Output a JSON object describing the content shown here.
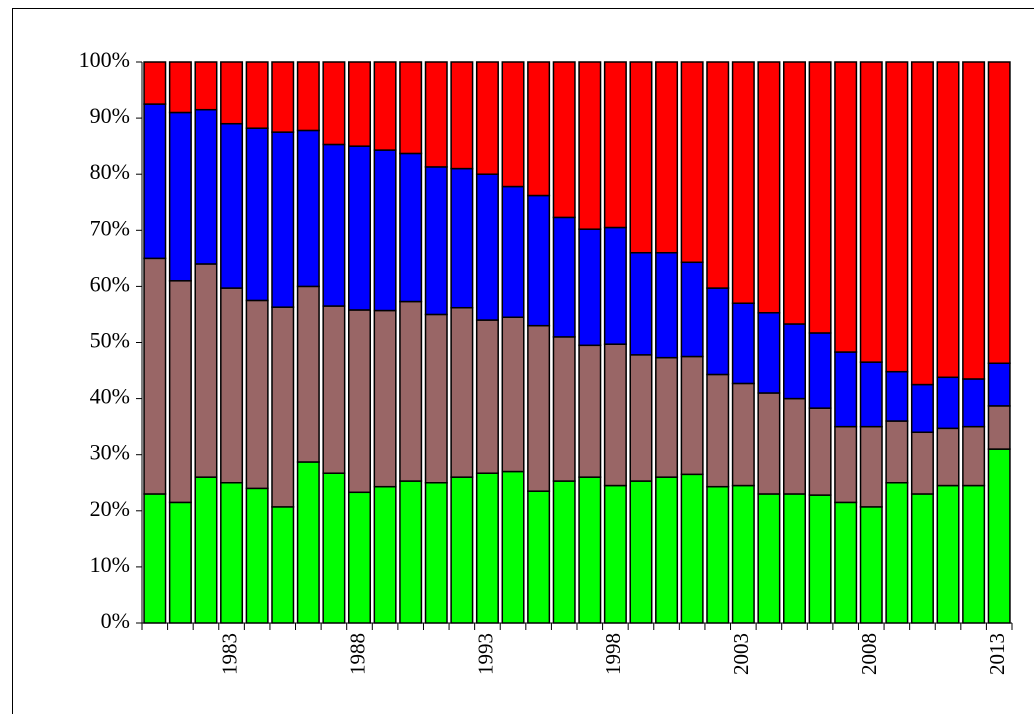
{
  "chart_data": {
    "type": "stacked_bar",
    "categories": [
      null,
      null,
      null,
      "1983",
      null,
      null,
      null,
      null,
      "1988",
      null,
      null,
      null,
      null,
      "1993",
      null,
      null,
      null,
      null,
      "1998",
      null,
      null,
      null,
      null,
      "2003",
      null,
      null,
      null,
      null,
      "2008",
      null,
      null,
      null,
      null,
      "2013"
    ],
    "series": [
      {
        "color": "#00ff00",
        "values": [
          23,
          21.5,
          26,
          25,
          24,
          20.7,
          28.7,
          26.7,
          23.3,
          24.3,
          25.3,
          25,
          26,
          26.7,
          27,
          23.5,
          25.3,
          26,
          24.5,
          25.3,
          26,
          26.5,
          24.3,
          24.5,
          23,
          23,
          22.8,
          21.5,
          20.7,
          25,
          23,
          24.5,
          24.5,
          31
        ]
      },
      {
        "color": "#996666",
        "values": [
          42,
          39.5,
          38,
          34.7,
          33.5,
          35.6,
          31.3,
          29.8,
          32.5,
          31.4,
          32,
          30,
          30.2,
          27.3,
          27.5,
          29.5,
          25.7,
          23.5,
          25.2,
          22.5,
          21.3,
          21,
          20,
          18.2,
          18,
          17,
          15.5,
          13.5,
          14.3,
          11,
          11,
          10.2,
          10.5,
          7.7
        ]
      },
      {
        "color": "#0000ff",
        "values": [
          27.5,
          30,
          27.5,
          29.3,
          30.7,
          31.2,
          27.8,
          28.8,
          29.2,
          28.6,
          26.4,
          26.3,
          24.8,
          26,
          23.3,
          23.2,
          21.3,
          20.7,
          20.8,
          18.2,
          18.7,
          16.8,
          15.4,
          14.3,
          14.3,
          13.3,
          13.4,
          13.3,
          11.5,
          8.8,
          8.5,
          9.1,
          8.5,
          7.6
        ]
      },
      {
        "color": "#ff0000",
        "values": [
          7.5,
          9,
          8.5,
          11,
          11.8,
          12.5,
          12.2,
          14.7,
          15,
          15.7,
          16.3,
          18.7,
          19,
          20,
          22.2,
          23.8,
          27.7,
          29.8,
          29.5,
          34,
          34,
          35.7,
          40.3,
          43,
          44.7,
          46.7,
          48.3,
          51.7,
          53.5,
          55.2,
          57.5,
          56.2,
          56.5,
          53.7
        ]
      }
    ],
    "ylim": [
      0,
      100
    ],
    "yticks": [
      {
        "value": 0,
        "label": "0%"
      },
      {
        "value": 10,
        "label": "10%"
      },
      {
        "value": 20,
        "label": "20%"
      },
      {
        "value": 30,
        "label": "30%"
      },
      {
        "value": 40,
        "label": "40%"
      },
      {
        "value": 50,
        "label": "50%"
      },
      {
        "value": 60,
        "label": "60%"
      },
      {
        "value": 70,
        "label": "70%"
      },
      {
        "value": 80,
        "label": "80%"
      },
      {
        "value": 90,
        "label": "90%"
      },
      {
        "value": 100,
        "label": "100%"
      }
    ]
  }
}
